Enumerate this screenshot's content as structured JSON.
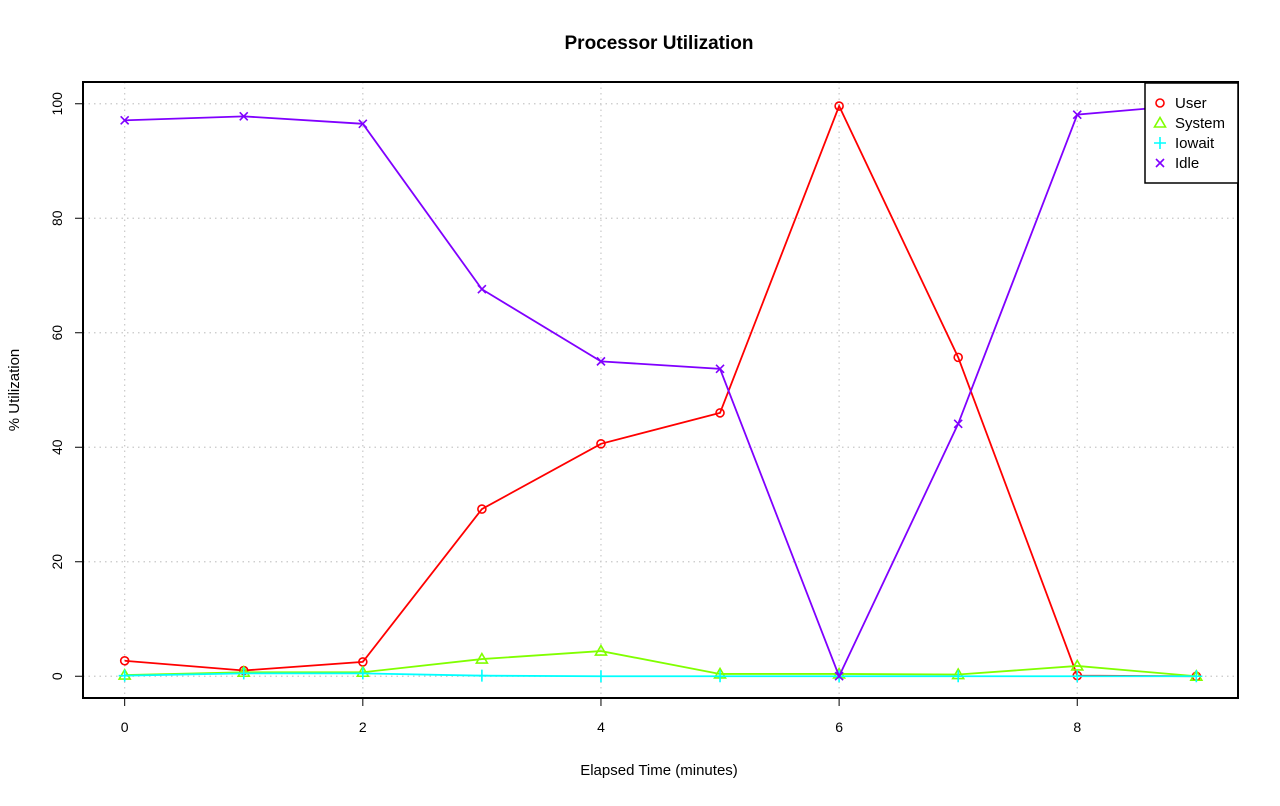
{
  "chart_data": {
    "type": "line",
    "title": "Processor Utilization",
    "xlabel": "Elapsed Time (minutes)",
    "ylabel": "% Utilization",
    "x": [
      0,
      1,
      2,
      3,
      4,
      5,
      6,
      7,
      8,
      9
    ],
    "xticks": [
      "0",
      "2",
      "4",
      "6",
      "8"
    ],
    "yticks": [
      "0",
      "20",
      "40",
      "60",
      "80",
      "100"
    ],
    "xlim": [
      -0.35,
      9.35
    ],
    "ylim": [
      -3.8,
      103.8
    ],
    "grid": true,
    "legend_position": "top-right",
    "series": [
      {
        "name": "User",
        "color": "#ff0000",
        "marker": "circle",
        "values": [
          2.7,
          1.0,
          2.5,
          29.2,
          40.6,
          46.0,
          99.6,
          55.7,
          0.1,
          0.0
        ]
      },
      {
        "name": "System",
        "color": "#80ff00",
        "marker": "triangle",
        "values": [
          0.2,
          0.7,
          0.7,
          3.0,
          4.4,
          0.4,
          0.4,
          0.3,
          1.8,
          0.0
        ]
      },
      {
        "name": "Iowait",
        "color": "#00ffff",
        "marker": "plus",
        "values": [
          0.1,
          0.5,
          0.5,
          0.1,
          0.0,
          0.0,
          0.0,
          0.0,
          0.0,
          0.0
        ]
      },
      {
        "name": "Idle",
        "color": "#8000ff",
        "marker": "cross",
        "values": [
          97.1,
          97.8,
          96.5,
          67.6,
          55.0,
          53.7,
          0.0,
          44.1,
          98.1,
          99.9
        ]
      }
    ]
  }
}
